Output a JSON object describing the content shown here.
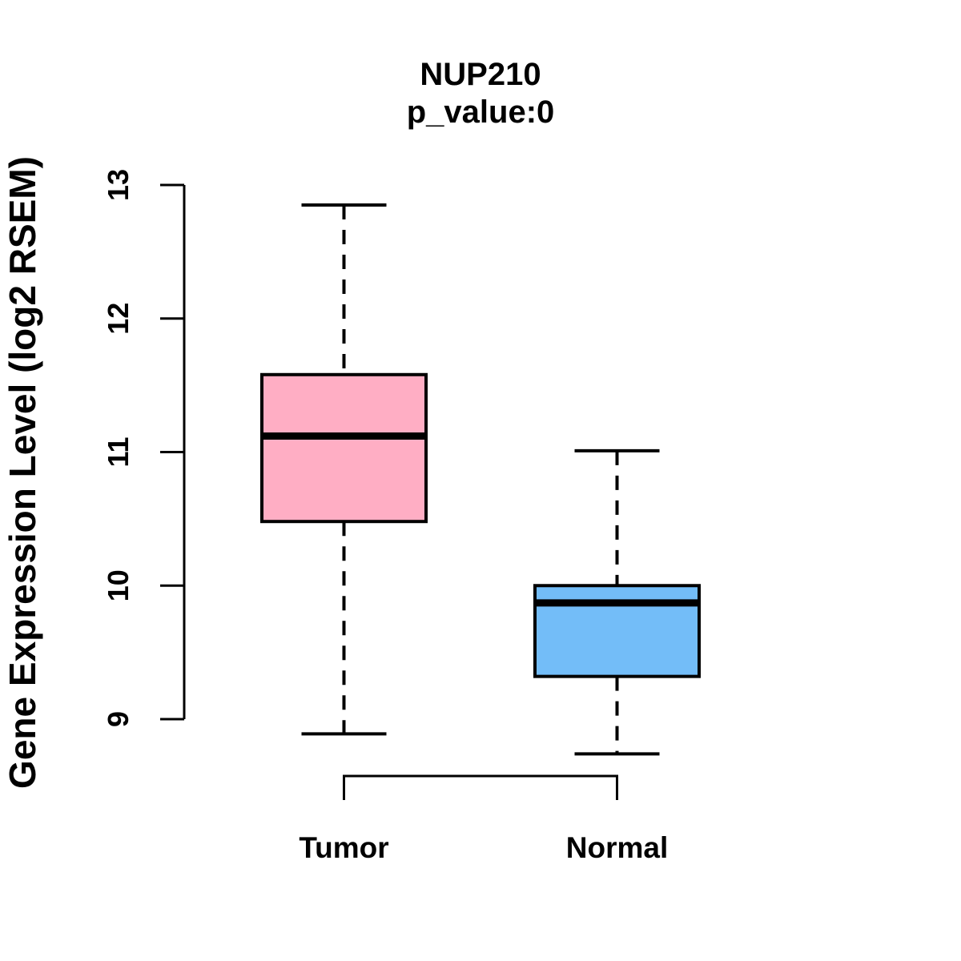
{
  "chart_data": {
    "type": "boxplot",
    "title": "NUP210",
    "subtitle": "p_value:0",
    "ylabel": "Gene Expression Level (log2 RSEM)",
    "xlabel": "",
    "categories": [
      "Tumor",
      "Normal"
    ],
    "yticks": [
      9,
      10,
      11,
      12,
      13
    ],
    "ylim": [
      9,
      13
    ],
    "grid": false,
    "legend": false,
    "whisker_style": "dashed",
    "series": [
      {
        "name": "Tumor",
        "color": "#ffaec4",
        "border_color": "#000000",
        "whisker_low": 8.89,
        "q1": 10.48,
        "median": 11.12,
        "q3": 11.58,
        "whisker_high": 12.85
      },
      {
        "name": "Normal",
        "color": "#73bdf8",
        "border_color": "#000000",
        "whisker_low": 8.74,
        "q1": 9.32,
        "median": 9.87,
        "q3": 10.0,
        "whisker_high": 11.01
      }
    ]
  }
}
